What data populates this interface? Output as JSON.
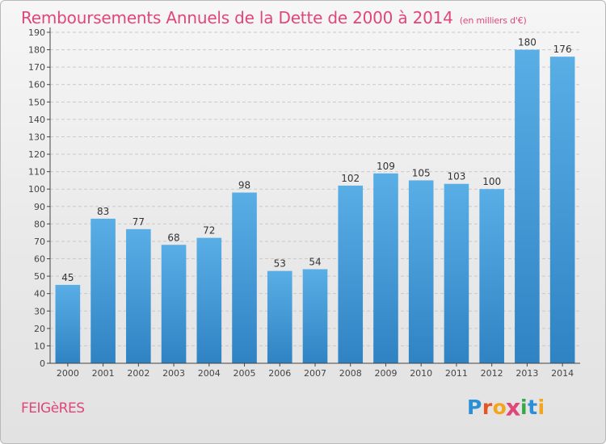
{
  "chart_data": {
    "type": "bar",
    "title": "Remboursements Annuels de la Dette de 2000 à 2014",
    "subtitle": "(en milliers d'€)",
    "categories": [
      "2000",
      "2001",
      "2002",
      "2003",
      "2004",
      "2005",
      "2006",
      "2007",
      "2008",
      "2009",
      "2010",
      "2011",
      "2012",
      "2013",
      "2014"
    ],
    "values": [
      45,
      83,
      77,
      68,
      72,
      98,
      53,
      54,
      102,
      109,
      105,
      103,
      100,
      180,
      176
    ],
    "ylim": [
      0,
      190
    ],
    "ytick_step": 10,
    "grid": true,
    "bar_color_top": "#5aaee6",
    "bar_color_bottom": "#2f83c3"
  },
  "footer": {
    "location": "FEIGèRES",
    "logo": [
      "P",
      "r",
      "o",
      "x",
      "i",
      "t",
      "i"
    ],
    "logo_colors": [
      "#2a8fd6",
      "#e8541e",
      "#f3a51c",
      "#e0467a",
      "#3aa64a",
      "#2a8fd6",
      "#f3a51c"
    ]
  },
  "colors": {
    "accent": "#e0467a",
    "axis": "#444444",
    "grid": "#c9c9c9"
  }
}
